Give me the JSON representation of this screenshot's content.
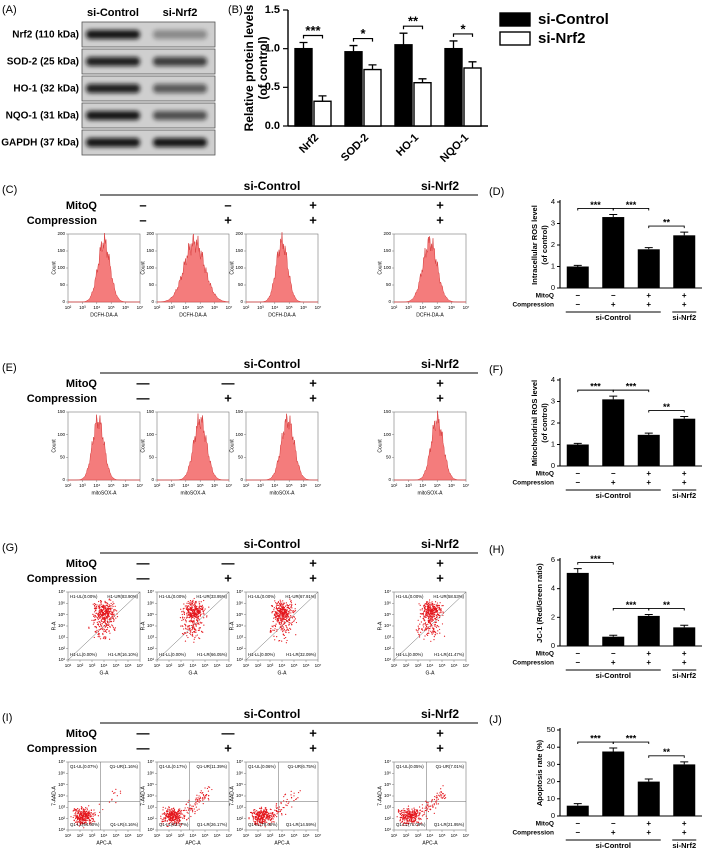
{
  "blot": {
    "panel": "(A)",
    "lanes": [
      "si-Control",
      "si-Nrf2"
    ],
    "bands": [
      "Nrf2 (110 kDa)",
      "SOD-2 (25 kDa)",
      "HO-1 (32 kDa)",
      "NQO-1 (31 kDa)",
      "GAPDH (37 kDa)"
    ]
  },
  "chart_data": [
    {
      "type": "grouped_bar",
      "panel": "(B)",
      "ylabel": [
        "Relative protein levels",
        "(of control)"
      ],
      "categories": [
        "Nrf2",
        "SOD-2",
        "HO-1",
        "NQO-1"
      ],
      "series": [
        {
          "name": "si-Control",
          "color": "#000000",
          "values": [
            1.0,
            0.96,
            1.05,
            1.0
          ],
          "errors": [
            0.08,
            0.08,
            0.15,
            0.1
          ]
        },
        {
          "name": "si-Nrf2",
          "color": "#ffffff",
          "values": [
            0.32,
            0.73,
            0.56,
            0.75
          ],
          "errors": [
            0.07,
            0.06,
            0.05,
            0.08
          ]
        }
      ],
      "significance": [
        "***",
        "*",
        "**",
        "*"
      ],
      "ylim": [
        0,
        1.5
      ],
      "yticks": [
        {
          "value": 0,
          "label": "0.0"
        },
        {
          "value": 0.5,
          "label": "0.5"
        },
        {
          "value": 1,
          "label": "1.0"
        },
        {
          "value": 1.5,
          "label": "1.5"
        }
      ]
    },
    {
      "type": "bar",
      "panel": "(D)",
      "ylabel": [
        "Intracellular ROS level",
        "(of control)"
      ],
      "categories": [
        null,
        null,
        null,
        null
      ],
      "color": "#000000",
      "values": [
        1.0,
        3.3,
        1.8,
        2.45
      ],
      "errors": [
        0.05,
        0.12,
        0.08,
        0.15
      ],
      "significance": [
        "***",
        "***",
        "**"
      ],
      "ylim": [
        0,
        4
      ],
      "yticks": [
        0,
        1,
        2,
        3,
        4
      ],
      "conditions": [
        {
          "label": "MitoQ",
          "marks": [
            "−",
            "−",
            "+",
            "+"
          ]
        },
        {
          "label": "Compression",
          "marks": [
            "−",
            "+",
            "+",
            "+"
          ]
        }
      ],
      "groups": [
        "si-Control",
        "si-Nrf2"
      ]
    },
    {
      "type": "bar",
      "panel": "(F)",
      "ylabel": [
        "Mitochondrial ROS level",
        "(of control)"
      ],
      "categories": [
        null,
        null,
        null,
        null
      ],
      "color": "#000000",
      "values": [
        1.0,
        3.1,
        1.45,
        2.2
      ],
      "errors": [
        0.05,
        0.15,
        0.08,
        0.1
      ],
      "significance": [
        "***",
        "***",
        "**"
      ],
      "ylim": [
        0,
        4
      ],
      "yticks": [
        0,
        1,
        2,
        3,
        4
      ],
      "conditions": [
        {
          "label": "MitoQ",
          "marks": [
            "−",
            "−",
            "+",
            "+"
          ]
        },
        {
          "label": "Compression",
          "marks": [
            "−",
            "+",
            "+",
            "+"
          ]
        }
      ],
      "groups": [
        "si-Control",
        "si-Nrf2"
      ]
    },
    {
      "type": "bar",
      "panel": "(H)",
      "ylabel": [
        "JC-1 (Red/Green ratio)"
      ],
      "categories": [
        null,
        null,
        null,
        null
      ],
      "color": "#000000",
      "values": [
        5.1,
        0.65,
        2.1,
        1.3
      ],
      "errors": [
        0.3,
        0.1,
        0.1,
        0.15
      ],
      "significance": [
        "***",
        "***",
        "**"
      ],
      "ylim": [
        0,
        6
      ],
      "yticks": [
        0,
        2,
        4,
        6
      ],
      "conditions": [
        {
          "label": "MitoQ",
          "marks": [
            "−",
            "−",
            "+",
            "+"
          ]
        },
        {
          "label": "Compression",
          "marks": [
            "−",
            "+",
            "+",
            "+"
          ]
        }
      ],
      "groups": [
        "si-Control",
        "si-Nrf2"
      ]
    },
    {
      "type": "bar",
      "panel": "(J)",
      "ylabel": [
        "Apoptosis rate (%)"
      ],
      "categories": [
        null,
        null,
        null,
        null
      ],
      "color": "#000000",
      "values": [
        6,
        37.5,
        20,
        30
      ],
      "errors": [
        1.2,
        2,
        1.5,
        1.5
      ],
      "significance": [
        "***",
        "***",
        "**"
      ],
      "ylim": [
        0,
        50
      ],
      "yticks": [
        0,
        10,
        20,
        30,
        40,
        50
      ],
      "conditions": [
        {
          "label": "MitoQ",
          "marks": [
            "−",
            "−",
            "+",
            "+"
          ]
        },
        {
          "label": "Compression",
          "marks": [
            "−",
            "+",
            "+",
            "+"
          ]
        }
      ],
      "groups": [
        "si-Control",
        "si-Nrf2"
      ]
    }
  ],
  "flow_rows": [
    {
      "panel": "(C)",
      "plot": "histogram",
      "groups": [
        "si-Control",
        "si-Nrf2"
      ],
      "header": [
        {
          "label": "MitoQ",
          "marks": [
            "–",
            "–",
            "+",
            "+"
          ]
        },
        {
          "label": "Compression",
          "marks": [
            "–",
            "+",
            "+",
            "+"
          ]
        }
      ],
      "xlabel": "DCFH-DA-A",
      "ylabel": "Count",
      "xticks": [
        "10²",
        "10³",
        "10⁴",
        "10⁵",
        "10⁶",
        "10⁷"
      ],
      "yticks": [
        "0",
        "50",
        "100",
        "150",
        "200"
      ]
    },
    {
      "panel": "(E)",
      "plot": "histogram",
      "groups": [
        "si-Control",
        "si-Nrf2"
      ],
      "header": [
        {
          "label": "MitoQ",
          "marks": [
            "—",
            "—",
            "+",
            "+"
          ]
        },
        {
          "label": "Compression",
          "marks": [
            "—",
            "+",
            "+",
            "+"
          ]
        }
      ],
      "xlabel": "mitoSOX-A",
      "ylabel": "Count",
      "xticks": [
        "10²",
        "10³",
        "10⁴",
        "10⁵",
        "10⁶",
        "10⁷"
      ],
      "yticks": [
        "0",
        "50",
        "100",
        "150"
      ]
    },
    {
      "panel": "(G)",
      "plot": "scatter",
      "groups": [
        "si-Control",
        "si-Nrf2"
      ],
      "header": [
        {
          "label": "MitoQ",
          "marks": [
            "—",
            "—",
            "+",
            "+"
          ]
        },
        {
          "label": "Compression",
          "marks": [
            "—",
            "+",
            "+",
            "+"
          ]
        }
      ],
      "xlabel": "G-A",
      "ylabel": "R-A",
      "xticks": [
        "10¹",
        "10²",
        "10³",
        "10⁴",
        "10⁵",
        "10⁶",
        "10⁷"
      ],
      "yticks": [
        "10¹",
        "10²",
        "10³",
        "10⁴",
        "10⁵",
        "10⁶",
        "10⁷"
      ],
      "quadrants": [
        [
          "H1-UL(0.00%)",
          "H1-UR(83.90%)",
          "H1-LL(0.00%)",
          "H1-LR(16.10%)"
        ],
        [
          "H1-UL(0.00%)",
          "H1-UR(33.95%)",
          "H1-LL(0.00%)",
          "H1-LR(66.05%)"
        ],
        [
          "H1-UL(0.00%)",
          "H1-UR(67.91%)",
          "H1-LL(0.00%)",
          "H1-LR(32.09%)"
        ],
        [
          "H1-UL(0.00%)",
          "H1-UR(58.53%)",
          "H1-LL(0.00%)",
          "H1-LR(41.47%)"
        ]
      ]
    },
    {
      "panel": "(I)",
      "plot": "scatter",
      "groups": [
        "si-Control",
        "si-Nrf2"
      ],
      "header": [
        {
          "label": "MitoQ",
          "marks": [
            "—",
            "—",
            "+",
            "+"
          ]
        },
        {
          "label": "Compression",
          "marks": [
            "—",
            "+",
            "+",
            "+"
          ]
        }
      ],
      "xlabel": "APC-A",
      "ylabel": "7-AAD-A",
      "xticks": [
        "10¹",
        "10²",
        "10³",
        "10⁴",
        "10⁵",
        "10⁶",
        "10⁷"
      ],
      "yticks": [
        "10¹",
        "10²",
        "10³",
        "10⁴",
        "10⁵",
        "10⁶",
        "10⁷"
      ],
      "quadrants": [
        [
          "Q1-UL(0.07%)",
          "Q1-UR(1.16%)",
          "Q1-LL(94.60%)",
          "Q1-LR(4.16%)"
        ],
        [
          "Q1-UL(0.17%)",
          "Q1-UR(11.39%)",
          "Q1-LL(62.27%)",
          "Q1-LR(26.17%)"
        ],
        [
          "Q1-UL(0.06%)",
          "Q1-UR(6.75%)",
          "Q1-LL(78.60%)",
          "Q1-LR(14.59%)"
        ],
        [
          "Q1-UL(0.05%)",
          "Q1-UR(7.01%)",
          "Q1-LL(71.08%)",
          "Q1-LR(21.95%)"
        ]
      ]
    }
  ]
}
